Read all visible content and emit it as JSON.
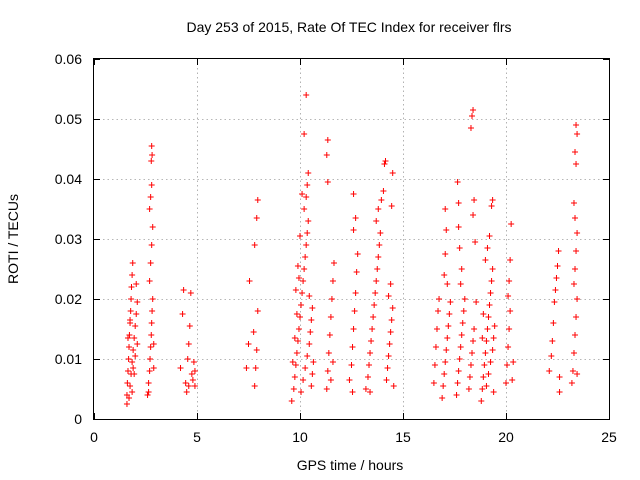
{
  "chart_data": {
    "type": "scatter",
    "title": "Day 253 of 2015, Rate Of TEC Index for receiver flrs",
    "xlabel": "GPS time / hours",
    "ylabel": "ROTI / TECUs",
    "xlim": [
      0,
      25
    ],
    "ylim": [
      0,
      0.06
    ],
    "x_ticks": [
      0,
      5,
      10,
      15,
      20,
      25
    ],
    "x_tick_labels": [
      "0",
      "5",
      "10",
      "15",
      "20",
      "25"
    ],
    "y_ticks": [
      0,
      0.01,
      0.02,
      0.03,
      0.04,
      0.05,
      0.06
    ],
    "y_tick_labels": [
      "0",
      "0.01",
      "0.02",
      "0.03",
      "0.04",
      "0.05",
      "0.06"
    ],
    "grid": true,
    "marker": "plus",
    "series": [
      {
        "color": "#ff0000",
        "points": [
          [
            1.6,
            0.0025
          ],
          [
            1.6,
            0.004
          ],
          [
            1.62,
            0.006
          ],
          [
            1.65,
            0.008
          ],
          [
            1.68,
            0.01
          ],
          [
            1.7,
            0.012
          ],
          [
            1.72,
            0.014
          ],
          [
            1.75,
            0.016
          ],
          [
            1.78,
            0.018
          ],
          [
            1.8,
            0.02
          ],
          [
            1.82,
            0.022
          ],
          [
            1.85,
            0.024
          ],
          [
            1.88,
            0.026
          ],
          [
            1.7,
            0.0035
          ],
          [
            1.75,
            0.0055
          ],
          [
            1.8,
            0.0075
          ],
          [
            1.85,
            0.0095
          ],
          [
            1.9,
            0.0115
          ],
          [
            1.95,
            0.0135
          ],
          [
            2.0,
            0.0155
          ],
          [
            2.05,
            0.0175
          ],
          [
            2.1,
            0.0195
          ],
          [
            1.9,
            0.0085
          ],
          [
            2.0,
            0.0105
          ],
          [
            2.1,
            0.0125
          ],
          [
            1.65,
            0.0135
          ],
          [
            1.75,
            0.0165
          ],
          [
            1.95,
            0.0075
          ],
          [
            2.05,
            0.0225
          ],
          [
            1.85,
            0.0045
          ],
          [
            2.6,
            0.004
          ],
          [
            2.65,
            0.006
          ],
          [
            2.7,
            0.008
          ],
          [
            2.72,
            0.01
          ],
          [
            2.75,
            0.012
          ],
          [
            2.78,
            0.014
          ],
          [
            2.8,
            0.016
          ],
          [
            2.82,
            0.018
          ],
          [
            2.85,
            0.02
          ],
          [
            2.7,
            0.023
          ],
          [
            2.75,
            0.026
          ],
          [
            2.8,
            0.029
          ],
          [
            2.85,
            0.032
          ],
          [
            2.7,
            0.035
          ],
          [
            2.75,
            0.037
          ],
          [
            2.8,
            0.039
          ],
          [
            2.78,
            0.043
          ],
          [
            2.8,
            0.0455
          ],
          [
            2.82,
            0.044
          ],
          [
            2.9,
            0.0085
          ],
          [
            2.9,
            0.0125
          ],
          [
            2.65,
            0.0045
          ],
          [
            4.2,
            0.0085
          ],
          [
            4.3,
            0.0175
          ],
          [
            4.35,
            0.0215
          ],
          [
            4.45,
            0.006
          ],
          [
            4.5,
            0.0045
          ],
          [
            4.55,
            0.01
          ],
          [
            4.6,
            0.0125
          ],
          [
            4.65,
            0.0155
          ],
          [
            4.7,
            0.021
          ],
          [
            4.75,
            0.0075
          ],
          [
            4.8,
            0.0065
          ],
          [
            4.85,
            0.0095
          ],
          [
            4.9,
            0.0055
          ],
          [
            4.9,
            0.008
          ],
          [
            4.6,
            0.0055
          ],
          [
            7.4,
            0.0085
          ],
          [
            7.5,
            0.0125
          ],
          [
            7.55,
            0.023
          ],
          [
            7.8,
            0.0055
          ],
          [
            7.85,
            0.0085
          ],
          [
            7.9,
            0.0115
          ],
          [
            7.95,
            0.018
          ],
          [
            7.8,
            0.029
          ],
          [
            7.9,
            0.0335
          ],
          [
            7.95,
            0.0365
          ],
          [
            7.75,
            0.0145
          ],
          [
            9.6,
            0.003
          ],
          [
            9.7,
            0.005
          ],
          [
            9.75,
            0.007
          ],
          [
            9.8,
            0.009
          ],
          [
            9.85,
            0.011
          ],
          [
            9.9,
            0.013
          ],
          [
            9.95,
            0.015
          ],
          [
            10.0,
            0.017
          ],
          [
            10.05,
            0.019
          ],
          [
            10.1,
            0.021
          ],
          [
            10.15,
            0.023
          ],
          [
            10.2,
            0.025
          ],
          [
            10.25,
            0.027
          ],
          [
            10.3,
            0.029
          ],
          [
            10.35,
            0.031
          ],
          [
            10.4,
            0.033
          ],
          [
            10.2,
            0.035
          ],
          [
            10.3,
            0.037
          ],
          [
            10.35,
            0.039
          ],
          [
            10.4,
            0.041
          ],
          [
            10.2,
            0.0475
          ],
          [
            10.3,
            0.054
          ],
          [
            9.65,
            0.0095
          ],
          [
            9.75,
            0.0135
          ],
          [
            9.85,
            0.0175
          ],
          [
            9.95,
            0.0235
          ],
          [
            10.05,
            0.0045
          ],
          [
            10.15,
            0.0065
          ],
          [
            10.25,
            0.0085
          ],
          [
            10.35,
            0.0105
          ],
          [
            10.45,
            0.0125
          ],
          [
            10.5,
            0.0145
          ],
          [
            10.55,
            0.0165
          ],
          [
            10.6,
            0.0185
          ],
          [
            10.45,
            0.0205
          ],
          [
            10.55,
            0.0055
          ],
          [
            10.6,
            0.0075
          ],
          [
            10.65,
            0.0095
          ],
          [
            9.9,
            0.0255
          ],
          [
            10.0,
            0.0305
          ],
          [
            10.1,
            0.0375
          ],
          [
            9.8,
            0.0215
          ],
          [
            11.3,
            0.005
          ],
          [
            11.35,
            0.008
          ],
          [
            11.4,
            0.011
          ],
          [
            11.45,
            0.014
          ],
          [
            11.5,
            0.017
          ],
          [
            11.55,
            0.02
          ],
          [
            11.6,
            0.023
          ],
          [
            11.65,
            0.026
          ],
          [
            11.35,
            0.0395
          ],
          [
            11.3,
            0.044
          ],
          [
            11.35,
            0.0465
          ],
          [
            11.5,
            0.0065
          ],
          [
            11.6,
            0.0095
          ],
          [
            12.4,
            0.0065
          ],
          [
            12.5,
            0.009
          ],
          [
            12.55,
            0.012
          ],
          [
            12.6,
            0.015
          ],
          [
            12.65,
            0.018
          ],
          [
            12.7,
            0.021
          ],
          [
            12.75,
            0.0245
          ],
          [
            12.8,
            0.0275
          ],
          [
            12.6,
            0.0315
          ],
          [
            12.7,
            0.0335
          ],
          [
            12.6,
            0.0375
          ],
          [
            12.55,
            0.0045
          ],
          [
            13.2,
            0.005
          ],
          [
            13.3,
            0.007
          ],
          [
            13.35,
            0.009
          ],
          [
            13.4,
            0.011
          ],
          [
            13.45,
            0.013
          ],
          [
            13.5,
            0.015
          ],
          [
            13.55,
            0.017
          ],
          [
            13.6,
            0.019
          ],
          [
            13.65,
            0.021
          ],
          [
            13.7,
            0.023
          ],
          [
            13.75,
            0.025
          ],
          [
            13.8,
            0.027
          ],
          [
            13.85,
            0.029
          ],
          [
            13.9,
            0.031
          ],
          [
            13.7,
            0.033
          ],
          [
            13.8,
            0.035
          ],
          [
            13.95,
            0.0365
          ],
          [
            14.05,
            0.038
          ],
          [
            14.1,
            0.0425
          ],
          [
            14.15,
            0.043
          ],
          [
            14.2,
            0.0065
          ],
          [
            14.25,
            0.0085
          ],
          [
            14.3,
            0.0105
          ],
          [
            14.35,
            0.0125
          ],
          [
            14.4,
            0.0145
          ],
          [
            14.45,
            0.0165
          ],
          [
            14.5,
            0.0185
          ],
          [
            14.3,
            0.0205
          ],
          [
            14.4,
            0.0225
          ],
          [
            14.45,
            0.0355
          ],
          [
            14.5,
            0.041
          ],
          [
            14.55,
            0.0055
          ],
          [
            13.4,
            0.0045
          ],
          [
            16.5,
            0.006
          ],
          [
            16.55,
            0.009
          ],
          [
            16.6,
            0.012
          ],
          [
            16.65,
            0.015
          ],
          [
            16.7,
            0.018
          ],
          [
            16.75,
            0.02
          ],
          [
            16.9,
            0.0035
          ],
          [
            16.95,
            0.0055
          ],
          [
            17.0,
            0.0075
          ],
          [
            17.05,
            0.0095
          ],
          [
            17.1,
            0.0115
          ],
          [
            17.15,
            0.0135
          ],
          [
            17.2,
            0.0155
          ],
          [
            17.25,
            0.0175
          ],
          [
            17.3,
            0.0195
          ],
          [
            17.0,
            0.024
          ],
          [
            17.05,
            0.0275
          ],
          [
            17.1,
            0.0315
          ],
          [
            17.05,
            0.035
          ],
          [
            17.15,
            0.0225
          ],
          [
            17.6,
            0.004
          ],
          [
            17.65,
            0.006
          ],
          [
            17.7,
            0.008
          ],
          [
            17.75,
            0.01
          ],
          [
            17.8,
            0.012
          ],
          [
            17.85,
            0.014
          ],
          [
            17.9,
            0.016
          ],
          [
            17.95,
            0.018
          ],
          [
            18.0,
            0.02
          ],
          [
            17.8,
            0.0225
          ],
          [
            17.85,
            0.025
          ],
          [
            17.75,
            0.0285
          ],
          [
            17.7,
            0.032
          ],
          [
            17.7,
            0.036
          ],
          [
            17.65,
            0.0395
          ],
          [
            18.2,
            0.005
          ],
          [
            18.25,
            0.007
          ],
          [
            18.3,
            0.009
          ],
          [
            18.35,
            0.011
          ],
          [
            18.4,
            0.013
          ],
          [
            18.45,
            0.015
          ],
          [
            18.3,
            0.0485
          ],
          [
            18.35,
            0.0505
          ],
          [
            18.4,
            0.0515
          ],
          [
            18.4,
            0.034
          ],
          [
            18.45,
            0.0365
          ],
          [
            18.5,
            0.0295
          ],
          [
            18.55,
            0.0195
          ],
          [
            18.8,
            0.003
          ],
          [
            18.85,
            0.005
          ],
          [
            18.9,
            0.007
          ],
          [
            18.95,
            0.009
          ],
          [
            19.0,
            0.011
          ],
          [
            19.05,
            0.013
          ],
          [
            19.1,
            0.015
          ],
          [
            19.15,
            0.017
          ],
          [
            19.2,
            0.019
          ],
          [
            19.25,
            0.021
          ],
          [
            19.3,
            0.023
          ],
          [
            19.35,
            0.025
          ],
          [
            19.0,
            0.0265
          ],
          [
            19.1,
            0.0285
          ],
          [
            19.2,
            0.0305
          ],
          [
            19.3,
            0.0355
          ],
          [
            19.35,
            0.0365
          ],
          [
            18.9,
            0.0175
          ],
          [
            19.05,
            0.0055
          ],
          [
            19.15,
            0.0075
          ],
          [
            19.25,
            0.0095
          ],
          [
            19.35,
            0.0115
          ],
          [
            19.4,
            0.0135
          ],
          [
            19.45,
            0.0155
          ],
          [
            18.85,
            0.0135
          ],
          [
            19.4,
            0.0045
          ],
          [
            20.0,
            0.006
          ],
          [
            20.05,
            0.009
          ],
          [
            20.1,
            0.012
          ],
          [
            20.15,
            0.015
          ],
          [
            20.2,
            0.018
          ],
          [
            20.1,
            0.0205
          ],
          [
            20.15,
            0.023
          ],
          [
            20.2,
            0.0265
          ],
          [
            20.25,
            0.0325
          ],
          [
            20.3,
            0.0065
          ],
          [
            20.35,
            0.0095
          ],
          [
            22.1,
            0.008
          ],
          [
            22.2,
            0.0105
          ],
          [
            22.25,
            0.013
          ],
          [
            22.3,
            0.016
          ],
          [
            22.35,
            0.0195
          ],
          [
            22.4,
            0.0215
          ],
          [
            22.45,
            0.0235
          ],
          [
            22.5,
            0.0255
          ],
          [
            22.55,
            0.028
          ],
          [
            22.6,
            0.0045
          ],
          [
            22.6,
            0.007
          ],
          [
            23.2,
            0.006
          ],
          [
            23.25,
            0.008
          ],
          [
            23.3,
            0.011
          ],
          [
            23.35,
            0.014
          ],
          [
            23.4,
            0.017
          ],
          [
            23.45,
            0.02
          ],
          [
            23.3,
            0.0225
          ],
          [
            23.35,
            0.025
          ],
          [
            23.4,
            0.028
          ],
          [
            23.45,
            0.031
          ],
          [
            23.35,
            0.0335
          ],
          [
            23.3,
            0.036
          ],
          [
            23.4,
            0.0425
          ],
          [
            23.35,
            0.0445
          ],
          [
            23.4,
            0.049
          ],
          [
            23.45,
            0.0475
          ],
          [
            23.45,
            0.0075
          ]
        ]
      }
    ]
  }
}
